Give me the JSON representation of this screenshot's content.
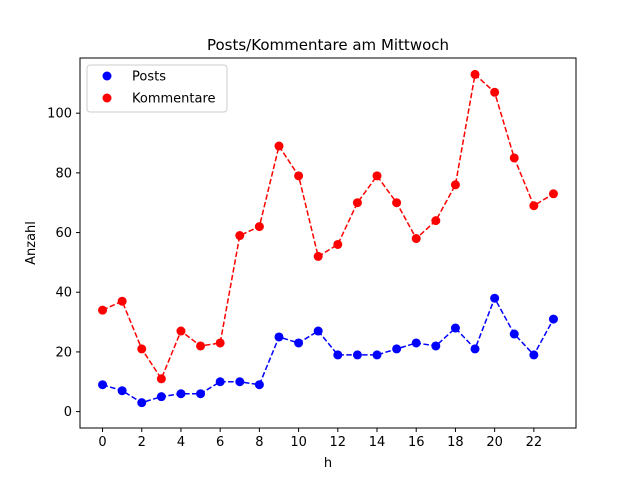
{
  "chart_data": {
    "type": "line",
    "title": "Posts/Kommentare am Mittwoch",
    "xlabel": "h",
    "ylabel": "Anzahl",
    "x": [
      0,
      1,
      2,
      3,
      4,
      5,
      6,
      7,
      8,
      9,
      10,
      11,
      12,
      13,
      14,
      15,
      16,
      17,
      18,
      19,
      20,
      21,
      22,
      23
    ],
    "xticks": [
      0,
      2,
      4,
      6,
      8,
      10,
      12,
      14,
      16,
      18,
      20,
      22
    ],
    "yticks": [
      0,
      20,
      40,
      60,
      80,
      100
    ],
    "xlim": [
      -1.15,
      24.15
    ],
    "ylim": [
      -5.5,
      118.5
    ],
    "grid": false,
    "legend_position": "top-left",
    "series": [
      {
        "name": "Posts",
        "color": "#0000ff",
        "line_style": "dashed",
        "marker": "circle",
        "values": [
          9,
          7,
          3,
          5,
          6,
          6,
          10,
          10,
          9,
          25,
          23,
          27,
          19,
          19,
          19,
          21,
          23,
          22,
          28,
          21,
          38,
          26,
          19,
          31
        ]
      },
      {
        "name": "Kommentare",
        "color": "#ff0000",
        "line_style": "dashed",
        "marker": "circle",
        "values": [
          34,
          37,
          21,
          11,
          27,
          22,
          23,
          59,
          62,
          89,
          79,
          52,
          56,
          70,
          79,
          70,
          58,
          64,
          76,
          113,
          107,
          85,
          69,
          73
        ]
      }
    ]
  }
}
